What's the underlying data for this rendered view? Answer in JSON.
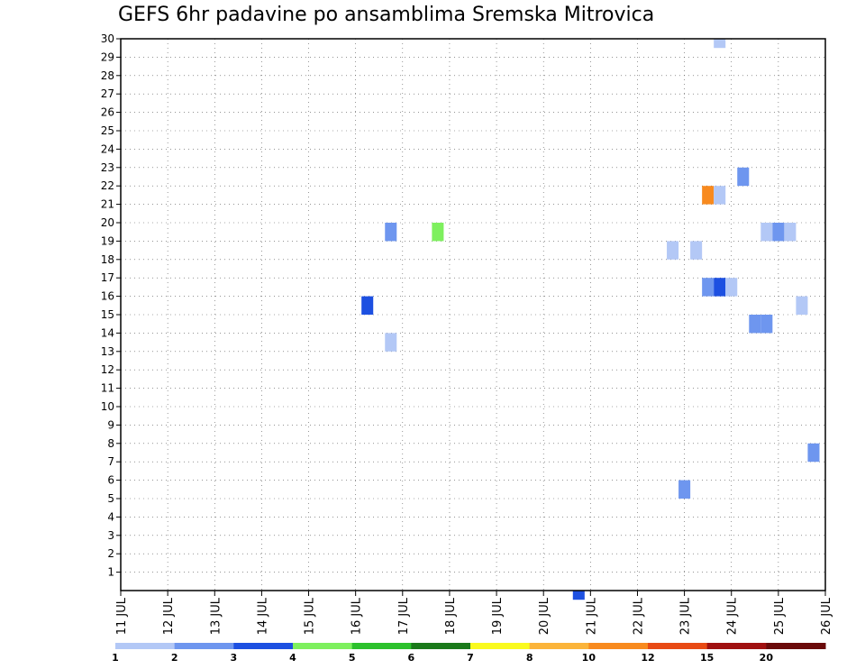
{
  "chart_data": {
    "type": "heatmap",
    "title": "GEFS 6hr padavine po ansamblima Sremska Mitrovica",
    "xlabel": "",
    "ylabel": "",
    "x_unit": "days (July, 6-hourly steps)",
    "xlim": [
      11,
      26
    ],
    "ylim": [
      0,
      30
    ],
    "x_tick_labels": [
      "11 JUL",
      "12 JUL",
      "13 JUL",
      "14 JUL",
      "15 JUL",
      "16 JUL",
      "17 JUL",
      "18 JUL",
      "19 JUL",
      "20 JUL",
      "21 JUL",
      "22 JUL",
      "23 JUL",
      "24 JUL",
      "25 JUL",
      "26 JUL"
    ],
    "y_tick_labels": [
      "1",
      "2",
      "3",
      "4",
      "5",
      "6",
      "7",
      "8",
      "9",
      "10",
      "11",
      "12",
      "13",
      "14",
      "15",
      "16",
      "17",
      "18",
      "19",
      "20",
      "21",
      "22",
      "23",
      "24",
      "25",
      "26",
      "27",
      "28",
      "29",
      "30"
    ],
    "grid": true,
    "colorbar": {
      "labels": [
        "1",
        "2",
        "3",
        "4",
        "5",
        "6",
        "7",
        "8",
        "10",
        "12",
        "15",
        "20"
      ],
      "colors": [
        "#b3c8f6",
        "#6e96ef",
        "#1d50e1",
        "#7ef05e",
        "#2cc12c",
        "#1a7a1a",
        "#fafa1e",
        "#fbb43a",
        "#f88a1e",
        "#e84a14",
        "#a01010",
        "#6a0a0a"
      ]
    },
    "cells": [
      {
        "x": 23.75,
        "y0": 29.5,
        "y1": 30,
        "level": 1
      },
      {
        "x": 24.25,
        "y0": 22,
        "y1": 23,
        "level": 2
      },
      {
        "x": 23.5,
        "y0": 21,
        "y1": 22,
        "level": 10
      },
      {
        "x": 23.75,
        "y0": 21,
        "y1": 22,
        "level": 1
      },
      {
        "x": 16.75,
        "y0": 19,
        "y1": 20,
        "level": 2
      },
      {
        "x": 17.75,
        "y0": 19,
        "y1": 20,
        "level": 4
      },
      {
        "x": 24.75,
        "y0": 19,
        "y1": 20,
        "level": 1
      },
      {
        "x": 25.0,
        "y0": 19,
        "y1": 20,
        "level": 2
      },
      {
        "x": 25.25,
        "y0": 19,
        "y1": 20,
        "level": 1
      },
      {
        "x": 22.75,
        "y0": 18,
        "y1": 19,
        "level": 1
      },
      {
        "x": 23.25,
        "y0": 18,
        "y1": 19,
        "level": 1
      },
      {
        "x": 23.5,
        "y0": 16,
        "y1": 17,
        "level": 2
      },
      {
        "x": 23.75,
        "y0": 16,
        "y1": 17,
        "level": 3
      },
      {
        "x": 24.0,
        "y0": 16,
        "y1": 17,
        "level": 1
      },
      {
        "x": 16.25,
        "y0": 15,
        "y1": 16,
        "level": 3
      },
      {
        "x": 25.5,
        "y0": 15,
        "y1": 16,
        "level": 1
      },
      {
        "x": 24.5,
        "y0": 14,
        "y1": 15,
        "level": 2
      },
      {
        "x": 24.75,
        "y0": 14,
        "y1": 15,
        "level": 2
      },
      {
        "x": 16.75,
        "y0": 13,
        "y1": 14,
        "level": 1
      },
      {
        "x": 25.75,
        "y0": 7,
        "y1": 8,
        "level": 2
      },
      {
        "x": 23.0,
        "y0": 5,
        "y1": 6,
        "level": 2
      },
      {
        "x": 20.75,
        "y0": -0.5,
        "y1": 0,
        "level": 3
      }
    ]
  }
}
